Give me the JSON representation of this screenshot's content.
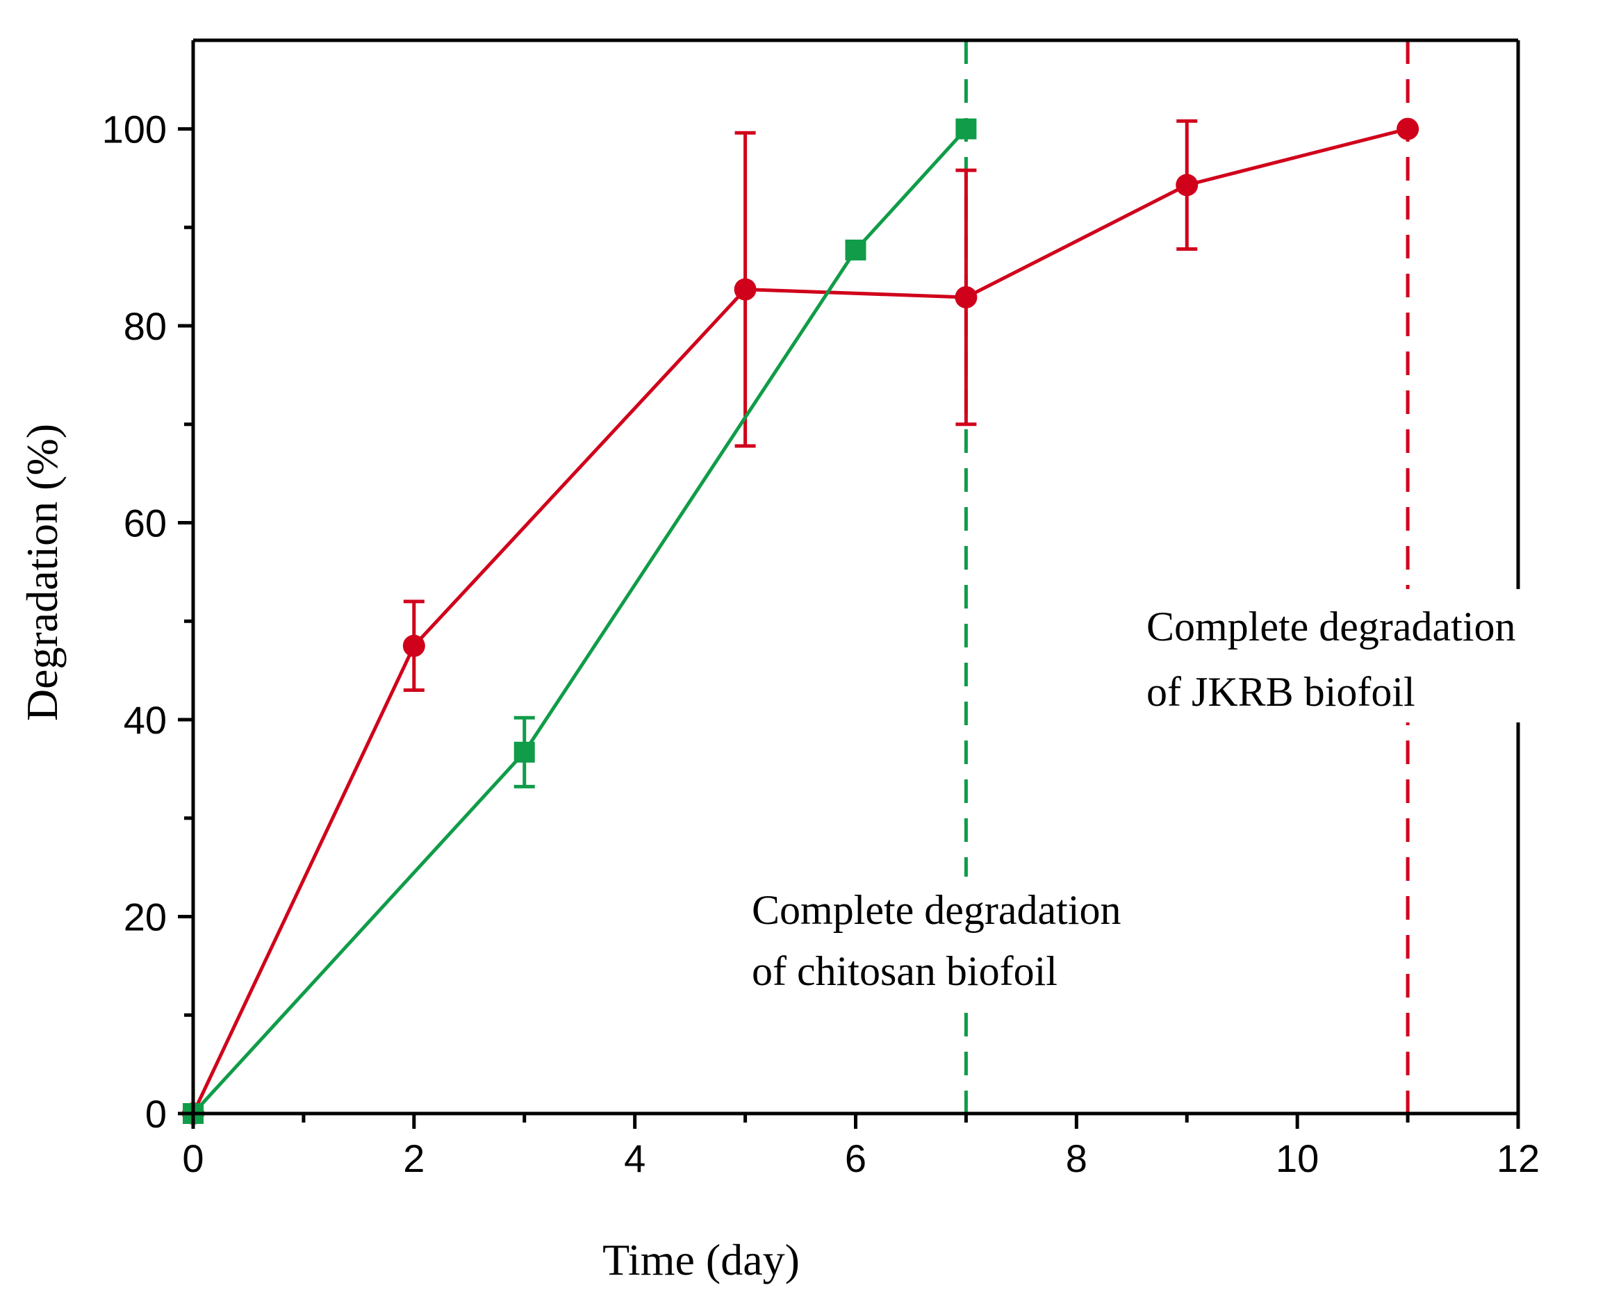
{
  "chart_data": {
    "type": "line",
    "title": "",
    "xlabel": "Time (day)",
    "ylabel": "Degradation (%)",
    "xlim": [
      0,
      12
    ],
    "ylim": [
      0,
      109
    ],
    "x_ticks": [
      0,
      2,
      4,
      6,
      8,
      10,
      12
    ],
    "x_tick_labels": [
      "0",
      "2",
      "4",
      "6",
      "8",
      "10",
      "12"
    ],
    "y_ticks": [
      0,
      20,
      40,
      60,
      80,
      100
    ],
    "y_tick_labels": [
      "0",
      "20",
      "40",
      "60",
      "80",
      "100"
    ],
    "grid": false,
    "legend": "none",
    "series": [
      {
        "name": "JKRB biofoil",
        "color": "#d0021b",
        "marker": "circle",
        "x": [
          0,
          2,
          5,
          7,
          9,
          11
        ],
        "y": [
          0,
          47.5,
          83.7,
          82.9,
          94.3,
          100
        ],
        "err": [
          0,
          4.5,
          15.9,
          12.9,
          6.5,
          0
        ]
      },
      {
        "name": "chitosan biofoil",
        "color": "#109c48",
        "marker": "square",
        "x": [
          0,
          3,
          6,
          7
        ],
        "y": [
          0,
          36.7,
          87.7,
          100
        ],
        "err": [
          0,
          3.5,
          0,
          0
        ]
      }
    ],
    "vlines": [
      {
        "x": 7,
        "color": "#109c48",
        "style": "dashed"
      },
      {
        "x": 11,
        "color": "#d0021b",
        "style": "dashed"
      }
    ],
    "annotations": [
      {
        "id": "chitosan",
        "line1": "Complete degradation",
        "line2": "of chitosan biofoil"
      },
      {
        "id": "jkrb",
        "line1": "Complete degradation",
        "line2": "of JKRB biofoil"
      }
    ]
  }
}
